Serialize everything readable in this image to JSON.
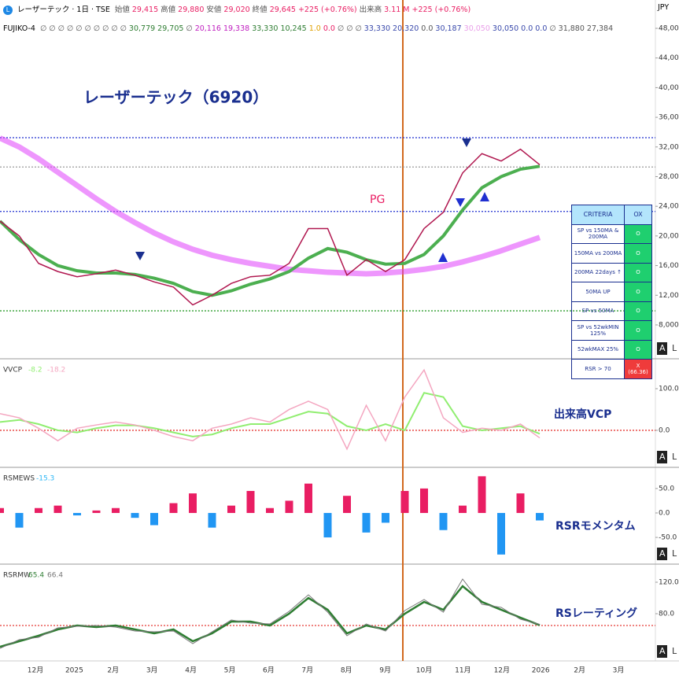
{
  "header": {
    "symbol": "レーザーテック · 1日 · TSE",
    "fields": [
      {
        "text": "始値",
        "color": "#555"
      },
      {
        "text": "29,415",
        "color": "#e91e63"
      },
      {
        "text": "高値",
        "color": "#555"
      },
      {
        "text": "29,880",
        "color": "#e91e63"
      },
      {
        "text": "安値",
        "color": "#555"
      },
      {
        "text": "29,020",
        "color": "#e91e63"
      },
      {
        "text": "終値",
        "color": "#555"
      },
      {
        "text": "29,645",
        "color": "#e91e63"
      },
      {
        "text": "+225 (+0.76%)",
        "color": "#e91e63"
      },
      {
        "text": "出来高",
        "color": "#555"
      },
      {
        "text": "3.11 M",
        "color": "#e91e63"
      },
      {
        "text": "+225 (+0.76%)",
        "color": "#e91e63"
      }
    ],
    "currency": "JPY"
  },
  "indicator": {
    "name": "FUJIKO-4",
    "values": [
      {
        "text": "∅ ∅ ∅ ∅ ∅ ∅ ∅ ∅ ∅ ∅",
        "color": "#555"
      },
      {
        "text": "30,779",
        "color": "#2e7d32"
      },
      {
        "text": "29,705",
        "color": "#2e7d32"
      },
      {
        "text": "∅",
        "color": "#555"
      },
      {
        "text": "20,116",
        "color": "#c020c0"
      },
      {
        "text": "19,338",
        "color": "#c020c0"
      },
      {
        "text": "33,330",
        "color": "#2e7d32"
      },
      {
        "text": "10,245",
        "color": "#2e7d32"
      },
      {
        "text": "1.0",
        "color": "#e0a000"
      },
      {
        "text": "0.0",
        "color": "#e91e63"
      },
      {
        "text": "∅ ∅ ∅",
        "color": "#555"
      },
      {
        "text": "33,330",
        "color": "#3949ab"
      },
      {
        "text": "20,320",
        "color": "#3949ab"
      },
      {
        "text": "0.0",
        "color": "#555"
      },
      {
        "text": "30,187",
        "color": "#3949ab"
      },
      {
        "text": "30,050",
        "color": "#e9a0e9"
      },
      {
        "text": "30,050",
        "color": "#3949ab"
      },
      {
        "text": "0.0",
        "color": "#3949ab"
      },
      {
        "text": "0.0",
        "color": "#3949ab"
      },
      {
        "text": "∅",
        "color": "#555"
      },
      {
        "text": "31,880",
        "color": "#555"
      },
      {
        "text": "27,384",
        "color": "#555"
      }
    ]
  },
  "scale_buttons": [
    "A",
    "L"
  ],
  "time_axis": [
    "12月",
    "2025",
    "2月",
    "3月",
    "4月",
    "5月",
    "6月",
    "7月",
    "8月",
    "9月",
    "10月",
    "11月",
    "12月",
    "2026",
    "2月",
    "3月"
  ],
  "criteria": {
    "header": [
      "CRITERIA",
      "OX"
    ],
    "rows": [
      [
        "SP vs 150MA & 200MA",
        "O"
      ],
      [
        "150MA vs 200MA",
        "O"
      ],
      [
        "200MA 22days ↑",
        "O"
      ],
      [
        "50MA UP",
        "O"
      ],
      [
        "SP vs 50MA",
        "O"
      ],
      [
        "SP vs 52wkMIN 125%",
        "O"
      ],
      [
        "52wkMAX 25%",
        "O"
      ],
      [
        "RSR > 70",
        "X (66.36)"
      ]
    ]
  },
  "chart_data": [
    {
      "type": "line",
      "title": "レーザーテック（6920）",
      "annotation": "PG",
      "ylim": [
        3540,
        51820
      ],
      "yticks": [
        {
          "value": 8000,
          "label": "8,000"
        },
        {
          "value": 12000,
          "label": "12,000"
        },
        {
          "value": 16000,
          "label": "16,000"
        },
        {
          "value": 20000,
          "label": "20,000"
        },
        {
          "value": 24000,
          "label": "24,000"
        },
        {
          "value": 28000,
          "label": "28,000"
        },
        {
          "value": 32000,
          "label": "32,000"
        },
        {
          "value": 36000,
          "label": "36,000"
        },
        {
          "value": 40000,
          "label": "40,000"
        },
        {
          "value": 44000,
          "label": "44,000"
        },
        {
          "value": 48000,
          "label": "48,000"
        }
      ],
      "hlines": [
        {
          "value": 33250,
          "color": "#2030d0"
        },
        {
          "value": 23300,
          "color": "#2030d0"
        },
        {
          "value": 29300,
          "color": "#999999"
        },
        {
          "value": 9900,
          "color": "#2e9d2e"
        }
      ],
      "series": [
        {
          "color": "#e040fb",
          "width": 7,
          "values": [
            33200,
            32000,
            30400,
            28600,
            26800,
            25000,
            23300,
            21800,
            20400,
            19200,
            18200,
            17400,
            16800,
            16300,
            15900,
            15500,
            15300,
            15100,
            15000,
            14900,
            15000,
            15200,
            15500,
            15900,
            16500,
            17200,
            18000,
            18900,
            19800
          ]
        },
        {
          "color": "#4caf50",
          "width": 4,
          "values": [
            22000,
            19500,
            17500,
            16000,
            15300,
            15000,
            15000,
            14800,
            14300,
            13600,
            12500,
            12000,
            12600,
            13500,
            14200,
            15200,
            17000,
            18300,
            17800,
            16800,
            16200,
            16300,
            17500,
            20000,
            23500,
            26500,
            28000,
            29000,
            29400
          ]
        },
        {
          "color": "#b0174f",
          "width": 1.5,
          "values": [
            22000,
            20000,
            16300,
            15200,
            14500,
            14900,
            15400,
            14700,
            13800,
            13100,
            10700,
            12000,
            13600,
            14500,
            14700,
            16300,
            21000,
            21000,
            14700,
            16800,
            15200,
            16800,
            21000,
            23200,
            28500,
            31100,
            30100,
            31700,
            29600
          ]
        }
      ]
    },
    {
      "type": "line",
      "title": "VVCP",
      "annotation": "出来高VCP",
      "ylim": [
        -87,
        168
      ],
      "yticks": [
        {
          "value": 0,
          "label": "0.0"
        },
        {
          "value": 100,
          "label": "100.0"
        }
      ],
      "hlines": [
        {
          "value": 0,
          "color": "#e53935"
        }
      ],
      "series": [
        {
          "color": "#90ee70",
          "width": 2,
          "values": [
            20,
            25,
            15,
            0,
            -5,
            5,
            12,
            12,
            5,
            -5,
            -15,
            -10,
            5,
            15,
            15,
            30,
            45,
            40,
            10,
            0,
            15,
            0,
            90,
            80,
            10,
            0,
            5,
            10,
            -8.2
          ]
        },
        {
          "color": "#f4a6c0",
          "width": 1.5,
          "values": [
            40,
            30,
            5,
            -25,
            5,
            13,
            20,
            13,
            0,
            -15,
            -25,
            5,
            15,
            30,
            20,
            50,
            70,
            50,
            -45,
            60,
            -25,
            80,
            145,
            30,
            -5,
            5,
            0,
            15,
            -18.2
          ]
        }
      ]
    },
    {
      "type": "bar",
      "title": "RSMEWS",
      "annotation": "RSRモメンタム",
      "ylim": [
        -103,
        90
      ],
      "yticks": [
        {
          "value": -50,
          "label": "-50.0"
        },
        {
          "value": 0,
          "label": "0.0"
        },
        {
          "value": 50,
          "label": "50.0"
        }
      ],
      "colors": {
        "up": "#e91e63",
        "down": "#2196f3"
      },
      "values": [
        10,
        -30,
        10,
        15,
        -5,
        5,
        10,
        -10,
        -25,
        20,
        40,
        -30,
        15,
        45,
        10,
        25,
        60,
        -50,
        35,
        -40,
        -20,
        45,
        50,
        -35,
        15,
        75,
        -85,
        40,
        -15.3
      ]
    },
    {
      "type": "line",
      "title": "RSRMW",
      "annotation": "RSレーティング",
      "ylim": [
        20,
        141
      ],
      "yticks": [
        {
          "value": 80,
          "label": "80.0"
        },
        {
          "value": 120,
          "label": "120.0"
        }
      ],
      "hlines": [
        {
          "value": 65,
          "color": "#e53935"
        }
      ],
      "series": [
        {
          "color": "#2e7d32",
          "width": 2.5,
          "values": [
            38,
            45,
            52,
            60,
            65,
            63,
            65,
            60,
            55,
            60,
            45,
            55,
            70,
            70,
            65,
            80,
            100,
            85,
            55,
            65,
            60,
            80,
            95,
            85,
            115,
            95,
            85,
            75,
            65.4
          ]
        },
        {
          "color": "#777777",
          "width": 1,
          "values": [
            36,
            47,
            50,
            62,
            64,
            65,
            63,
            58,
            57,
            58,
            42,
            57,
            72,
            68,
            67,
            83,
            104,
            82,
            52,
            67,
            58,
            84,
            98,
            82,
            124,
            92,
            88,
            73,
            66.4
          ]
        }
      ]
    }
  ]
}
